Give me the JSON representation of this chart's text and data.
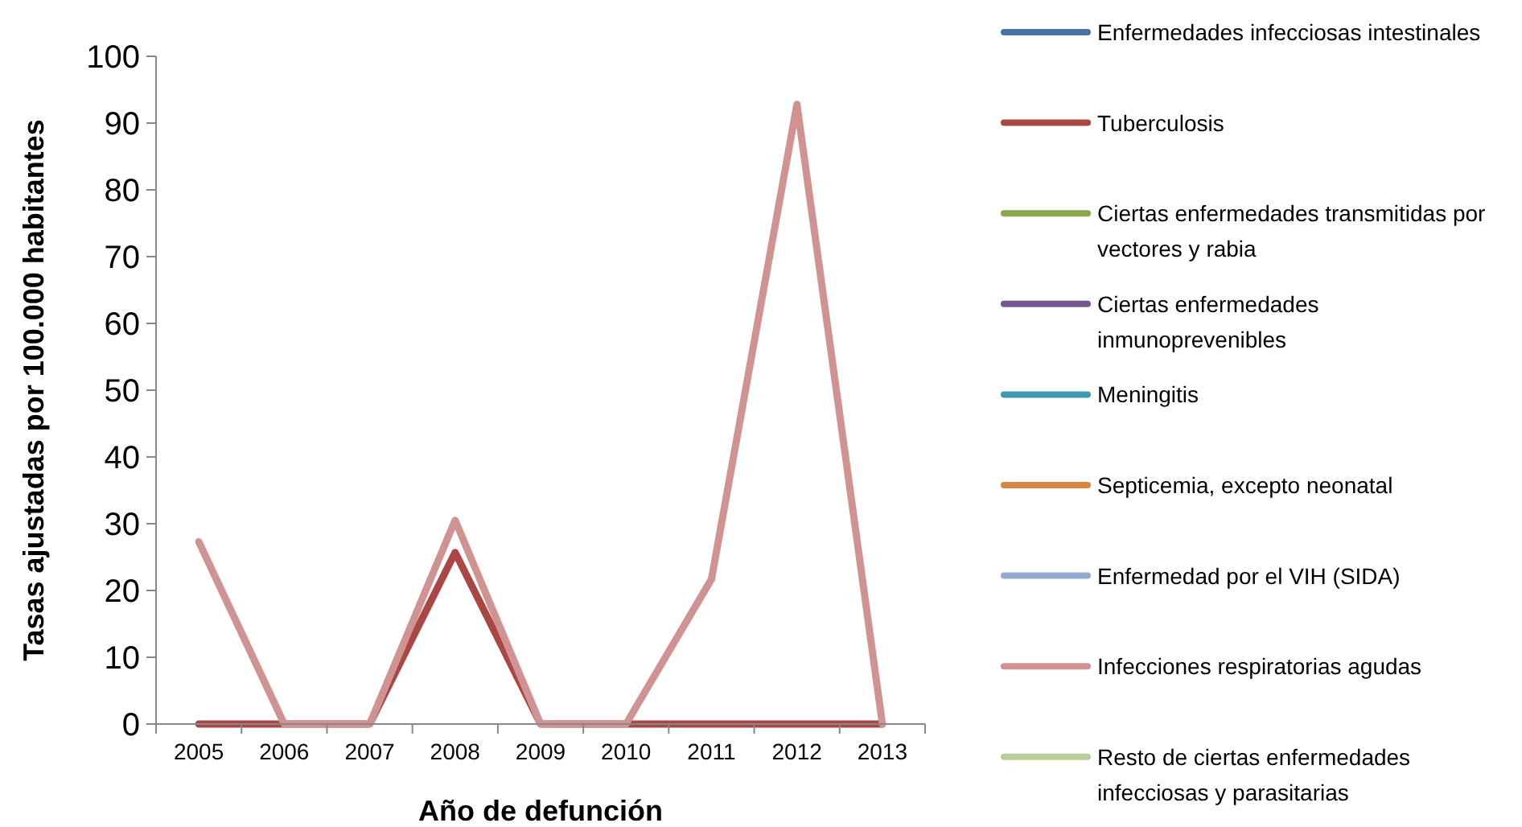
{
  "chart_data": {
    "type": "line",
    "xlabel": "Año de defunción",
    "ylabel": "Tasas ajustadas por 100.000 habitantes",
    "categories": [
      "2005",
      "2006",
      "2007",
      "2008",
      "2009",
      "2010",
      "2011",
      "2012",
      "2013"
    ],
    "ylim": [
      0,
      100
    ],
    "yticks": [
      0,
      10,
      20,
      30,
      40,
      50,
      60,
      70,
      80,
      90,
      100
    ],
    "legend": "right",
    "marker": "none",
    "line_style": "solid",
    "series": [
      {
        "name": "Enfermedades infecciosas intestinales",
        "color": "#4a72a8",
        "values": [
          null,
          null,
          null,
          null,
          null,
          null,
          null,
          null,
          null
        ]
      },
      {
        "name": "Tuberculosis",
        "color": "#aa4643",
        "values": [
          0,
          0,
          0,
          25.7,
          0,
          0,
          0,
          0,
          0
        ]
      },
      {
        "name": "Ciertas enfermedades transmitidas por\nvectores y rabia",
        "color": "#89a54e",
        "values": [
          null,
          null,
          null,
          null,
          null,
          null,
          null,
          null,
          null
        ]
      },
      {
        "name": "Ciertas enfermedades\ninmunoprevenibles",
        "color": "#71588f",
        "values": [
          null,
          null,
          null,
          null,
          null,
          null,
          null,
          null,
          null
        ]
      },
      {
        "name": "Meningitis",
        "color": "#4198af",
        "values": [
          null,
          null,
          null,
          null,
          null,
          null,
          null,
          null,
          null
        ]
      },
      {
        "name": "Septicemia, excepto neonatal",
        "color": "#db843d",
        "values": [
          null,
          null,
          null,
          null,
          null,
          null,
          null,
          null,
          null
        ]
      },
      {
        "name": "Enfermedad por el VIH (SIDA)",
        "color": "#93a9cf",
        "values": [
          null,
          null,
          null,
          null,
          null,
          null,
          null,
          null,
          null
        ]
      },
      {
        "name": "Infecciones respiratorias agudas",
        "color": "#d19392",
        "values": [
          27.3,
          0,
          0,
          30.5,
          0,
          0,
          21.7,
          92.8,
          0
        ]
      },
      {
        "name": "Resto de ciertas enfermedades\ninfecciosas y parasitarias",
        "color": "#b9cd96",
        "values": [
          null,
          null,
          null,
          null,
          null,
          null,
          null,
          null,
          null
        ]
      }
    ]
  }
}
